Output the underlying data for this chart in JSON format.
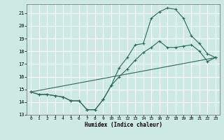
{
  "xlabel": "Humidex (Indice chaleur)",
  "bg_color": "#cceae2",
  "grid_color": "#b0d8d0",
  "line_color": "#2a6858",
  "xlim": [
    -0.5,
    23.5
  ],
  "ylim": [
    13,
    21.7
  ],
  "yticks": [
    13,
    14,
    15,
    16,
    17,
    18,
    19,
    20,
    21
  ],
  "xticks": [
    0,
    1,
    2,
    3,
    4,
    5,
    6,
    7,
    8,
    9,
    10,
    11,
    12,
    13,
    14,
    15,
    16,
    17,
    18,
    19,
    20,
    21,
    22,
    23
  ],
  "line1_x": [
    0,
    1,
    2,
    3,
    4,
    5,
    6,
    7,
    8,
    9,
    10,
    11,
    12,
    13,
    14,
    15,
    16,
    17,
    18,
    19,
    20,
    21,
    22,
    23
  ],
  "line1_y": [
    14.8,
    14.6,
    14.6,
    14.5,
    14.4,
    14.1,
    14.1,
    13.4,
    13.4,
    14.2,
    15.3,
    16.0,
    16.6,
    17.3,
    17.9,
    18.3,
    18.8,
    18.3,
    18.3,
    18.4,
    18.5,
    18.0,
    17.2,
    17.5
  ],
  "line2_x": [
    0,
    1,
    2,
    3,
    4,
    5,
    6,
    7,
    8,
    9,
    10,
    11,
    12,
    13,
    14,
    15,
    16,
    17,
    18,
    19,
    20,
    21,
    22,
    23
  ],
  "line2_y": [
    14.8,
    14.6,
    14.6,
    14.5,
    14.4,
    14.1,
    14.1,
    13.4,
    13.4,
    14.2,
    15.3,
    16.7,
    17.5,
    18.5,
    18.6,
    20.6,
    21.1,
    21.4,
    21.3,
    20.6,
    19.2,
    18.6,
    17.8,
    17.5
  ],
  "line3_x": [
    0,
    23
  ],
  "line3_y": [
    14.8,
    17.5
  ]
}
